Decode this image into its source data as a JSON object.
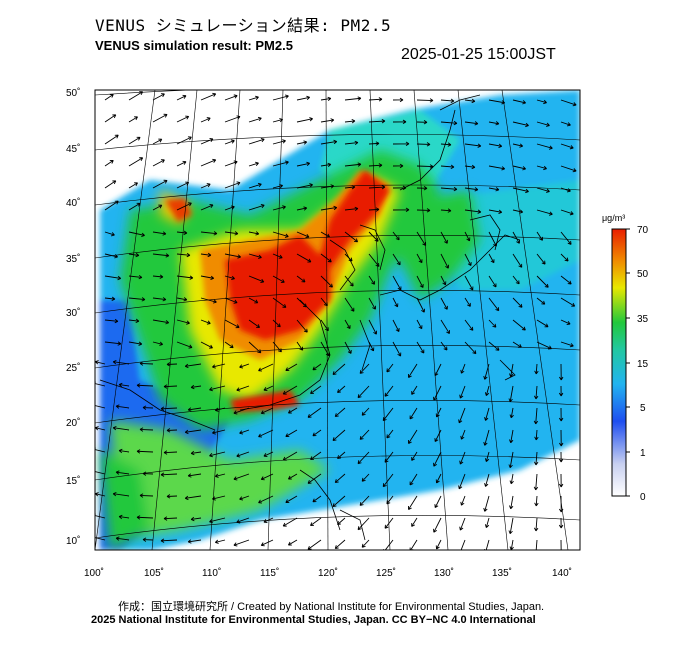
{
  "header": {
    "title_jp": "VENUS シミュレーション結果: PM2.5",
    "title_en": "VENUS simulation result: PM2.5",
    "timestamp": "2025-01-25 15:00JST"
  },
  "axes": {
    "lat_ticks": [
      "50˚",
      "45˚",
      "40˚",
      "35˚",
      "30˚",
      "25˚",
      "20˚",
      "15˚",
      "10˚"
    ],
    "lon_ticks": [
      "100˚",
      "105˚",
      "110˚",
      "115˚",
      "120˚",
      "125˚",
      "130˚",
      "135˚",
      "140˚"
    ]
  },
  "colorbar": {
    "unit": "μg/m³",
    "labels": [
      "70",
      "50",
      "35",
      "15",
      "5",
      "1",
      "0"
    ]
  },
  "footer": {
    "credit_line": "作成：国立環境研究所 / Created by National Institute for Environmental Studies, Japan.",
    "license_line": "2025 National Institute for Environmental Studies, Japan. CC BY−NC 4.0 International"
  },
  "colors": {
    "low": "#e8ecf8",
    "blue": "#1e6bf0",
    "cyan": "#22c8f0",
    "green": "#22c83c",
    "yellow": "#e8e800",
    "orange": "#f08c00",
    "red": "#e81e00"
  }
}
